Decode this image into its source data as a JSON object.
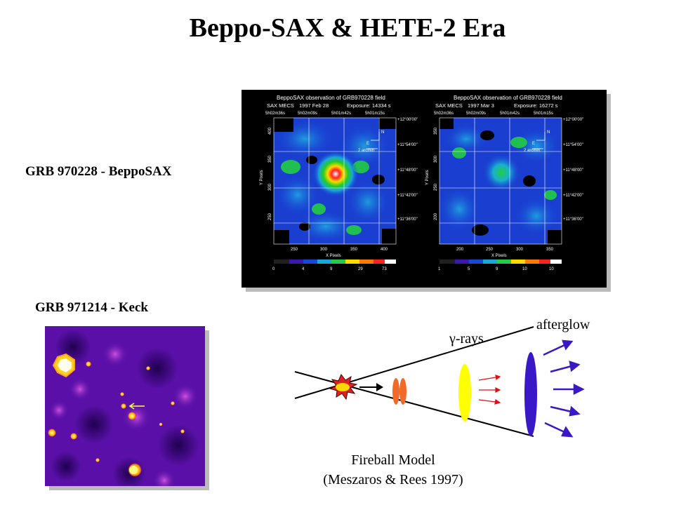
{
  "slide": {
    "title": "Beppo-SAX & HETE-2 Era",
    "label_sax": "GRB 970228 - BeppoSAX",
    "label_keck": "GRB 971214 - Keck"
  },
  "sax": {
    "left": {
      "header1": "BeppoSAX observation of GRB970228 field",
      "header2_inst": "SAX MECS",
      "header2_date": "1997 Feb 28",
      "header2_exp": "Exposure: 14334 s",
      "ra_ticks": [
        "5h02m36s",
        "5h02m09s",
        "5h01m42s",
        "5h01m15s"
      ],
      "dec_ticks": [
        "+12°00'00\"",
        "+11°54'00\"",
        "+11°48'00\"",
        "+11°42'00\"",
        "+11°36'00\""
      ],
      "y_ticks": [
        "400",
        "350",
        "300",
        "250"
      ],
      "x_ticks": [
        "250",
        "300",
        "350",
        "400"
      ],
      "xlabel": "X Pixels",
      "ylabel": "Y Pixels",
      "colorbar_ticks": [
        "0",
        "4",
        "9",
        "29",
        "73"
      ]
    },
    "right": {
      "header1": "BeppoSAX observation of GRB970228 field",
      "header2_inst": "SAX MECS",
      "header2_date": "1997 Mar 3",
      "header2_exp": "Exposure: 16272 s",
      "ra_ticks": [
        "5h02m36s",
        "5h02m09s",
        "5h01m42s",
        "5h01m15s"
      ],
      "dec_ticks": [
        "+12°00'00\"",
        "+11°54'00\"",
        "+11°48'00\"",
        "+11°42'00\"",
        "+11°36'00\""
      ],
      "y_ticks": [
        "350",
        "300",
        "250",
        "200"
      ],
      "x_ticks": [
        "200",
        "250",
        "300",
        "350"
      ],
      "xlabel": "X Pixels",
      "ylabel": "Y Pixels",
      "colorbar_ticks": [
        "1",
        "5",
        "9",
        "10",
        "10"
      ]
    },
    "compass_n": "N",
    "compass_e": "E",
    "scale": "2 arcmin"
  },
  "fireball": {
    "gamma_label": "γ-rays",
    "afterglow_label": "afterglow",
    "caption_line1": "Fireball Model",
    "caption_line2": "(Meszaros & Rees 1997)"
  },
  "colors": {
    "shell_orange": "#F06A2A",
    "gamma_yellow": "#FFFF00",
    "afterglow_blue": "#3A18C8",
    "gamma_arrow_red": "#E01010",
    "keck_bg": "#5A10A8"
  }
}
